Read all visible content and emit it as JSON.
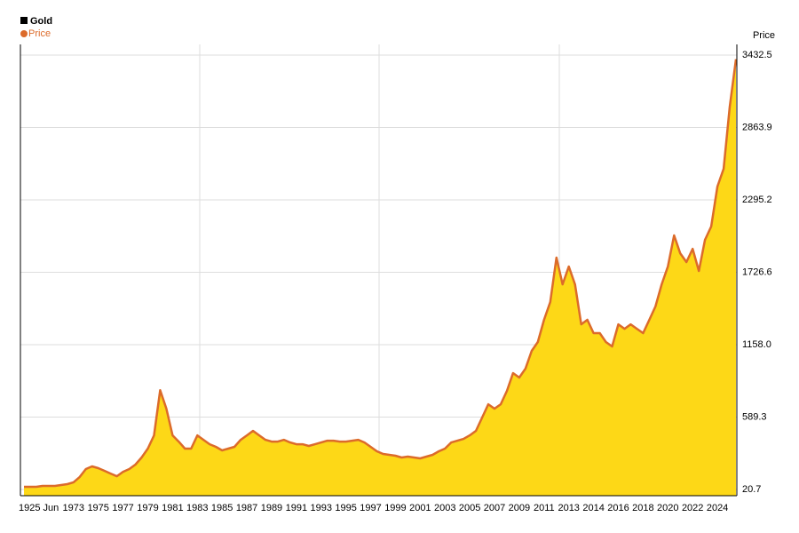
{
  "chart_data": {
    "type": "area",
    "title": "Gold",
    "y_axis_label": "Price",
    "categories": [
      "1925 Jun",
      null,
      null,
      null,
      null,
      null,
      null,
      null,
      "1973",
      null,
      null,
      null,
      "1975",
      null,
      null,
      null,
      "1977",
      null,
      null,
      null,
      "1979",
      null,
      null,
      null,
      "1981",
      null,
      null,
      null,
      "1983",
      null,
      null,
      null,
      "1985",
      null,
      null,
      null,
      "1987",
      null,
      null,
      null,
      "1989",
      null,
      null,
      null,
      "1991",
      null,
      null,
      null,
      "1993",
      null,
      null,
      null,
      "1995",
      null,
      null,
      null,
      "1997",
      null,
      null,
      null,
      "1999",
      null,
      null,
      null,
      "2001",
      null,
      null,
      null,
      "2003",
      null,
      null,
      null,
      "2005",
      null,
      null,
      null,
      "2007",
      null,
      null,
      null,
      "2009",
      null,
      null,
      null,
      "2011",
      null,
      null,
      null,
      "2013",
      null,
      null,
      null,
      "2014",
      null,
      null,
      null,
      "2016",
      null,
      null,
      null,
      "2018",
      null,
      null,
      null,
      "2020",
      null,
      null,
      null,
      "2022",
      null,
      null,
      null,
      "2024",
      null,
      null,
      null
    ],
    "series": [
      {
        "name": "Price",
        "color": "#dc6b2a",
        "fill": "#fdd817",
        "values": [
          42,
          42,
          42,
          49,
          49,
          49,
          56,
          63,
          77,
          119,
          181,
          202,
          188,
          167,
          146,
          125,
          160,
          181,
          216,
          272,
          342,
          446,
          800,
          656,
          446,
          397,
          342,
          342,
          446,
          411,
          376,
          356,
          328,
          342,
          356,
          411,
          446,
          481,
          446,
          411,
          397,
          397,
          411,
          390,
          376,
          376,
          363,
          376,
          390,
          404,
          404,
          397,
          397,
          404,
          411,
          390,
          356,
          321,
          300,
          293,
          286,
          272,
          279,
          272,
          265,
          279,
          293,
          321,
          342,
          390,
          404,
          418,
          446,
          481,
          586,
          690,
          656,
          690,
          795,
          935,
          900,
          970,
          1109,
          1179,
          1353,
          1493,
          1842,
          1632,
          1772,
          1632,
          1318,
          1353,
          1249,
          1249,
          1179,
          1144,
          1318,
          1283,
          1318,
          1283,
          1249,
          1353,
          1458,
          1632,
          1772,
          2016,
          1876,
          1807,
          1911,
          1737,
          1981,
          2086,
          2400,
          2539,
          3028,
          3400
        ]
      }
    ],
    "ylim": [
      -28,
      3516
    ],
    "yticks": [
      20.7,
      589.3,
      {
        "value": 1158,
        "label": "1158.0"
      },
      1726.6,
      2295.2,
      2863.9,
      3432.5
    ],
    "grid": true
  }
}
